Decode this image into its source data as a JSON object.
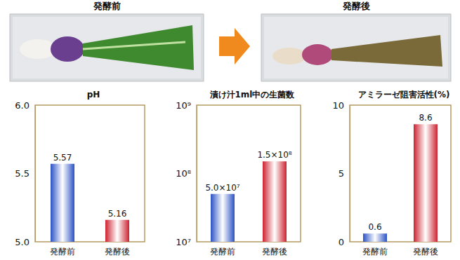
{
  "header": {
    "photo_labels": [
      "発酵前",
      "発酵後"
    ]
  },
  "chart_data": [
    {
      "type": "bar",
      "title": "pH",
      "categories": [
        "発酵前",
        "発酵後"
      ],
      "values": [
        5.57,
        5.16
      ],
      "colors": [
        "#2b52c4",
        "#cc2230"
      ],
      "ylim": [
        5,
        6
      ],
      "yticks": [
        {
          "value": 5,
          "label": "5.0"
        },
        5.5,
        {
          "value": 6,
          "label": "6.0"
        }
      ],
      "data_labels": true
    },
    {
      "type": "bar",
      "title": "漬け汁1ml中の生菌数",
      "categories": [
        "発酵前",
        "発酵後"
      ],
      "values": [
        50000000,
        150000000
      ],
      "value_labels": [
        "5.0×10⁷",
        "1.5×10⁸"
      ],
      "colors": [
        "#2b52c4",
        "#cc2230"
      ],
      "log": "y",
      "ylim": [
        10000000,
        1000000000
      ],
      "yticks": [
        {
          "value": 10000000,
          "label": "10⁷"
        },
        {
          "value": 100000000,
          "label": "10⁸"
        },
        {
          "value": 1000000000,
          "label": "10⁹"
        }
      ],
      "data_labels": true
    },
    {
      "type": "bar",
      "title": "アミラーゼ阻害活性(%)",
      "categories": [
        "発酵前",
        "発酵後"
      ],
      "values": [
        0.6,
        8.6
      ],
      "colors": [
        "#2b52c4",
        "#cc2230"
      ],
      "ylim": [
        0,
        10
      ],
      "yticks": [
        0,
        5,
        10
      ],
      "data_labels": true
    }
  ]
}
